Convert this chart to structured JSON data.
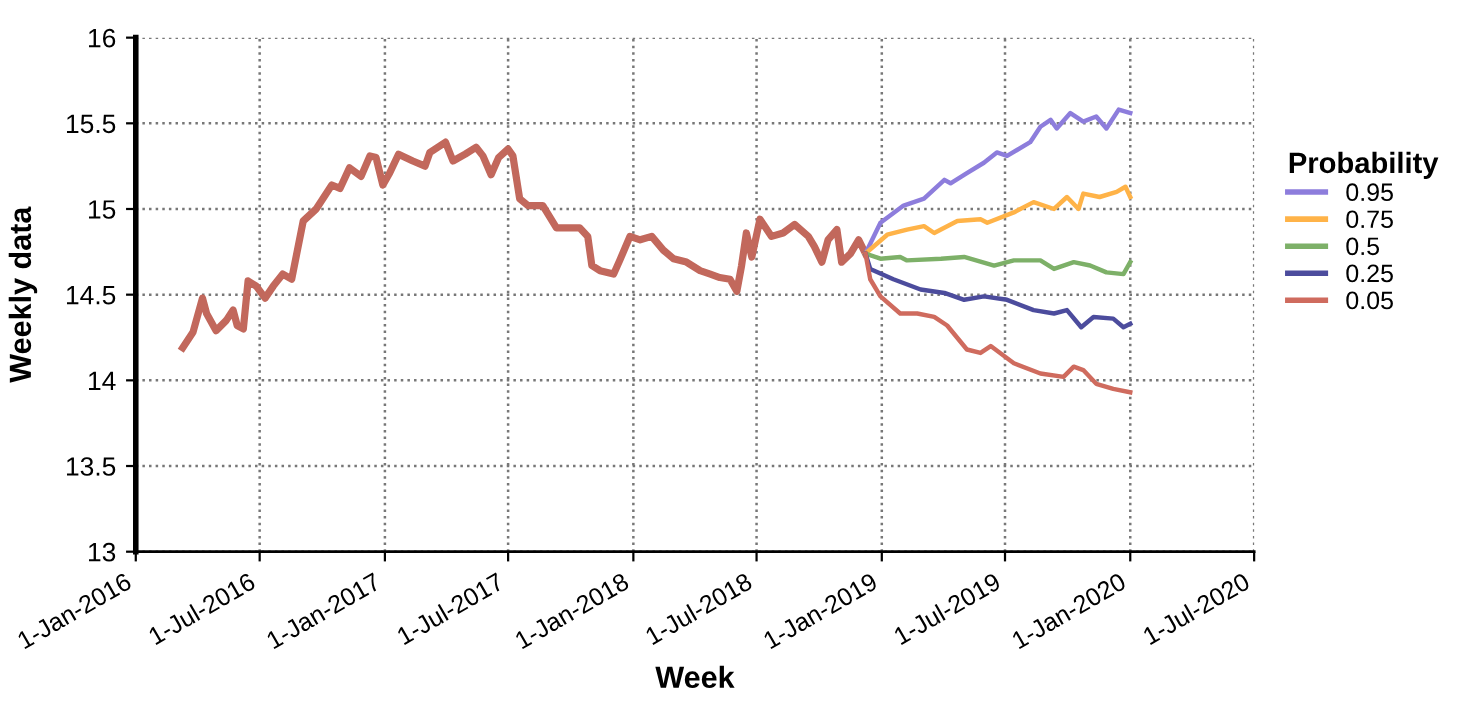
{
  "chart_data": {
    "type": "line",
    "xlabel": "Week",
    "ylabel": "Weekly data",
    "legend_title": "Probability",
    "legend": "right",
    "grid": true,
    "line_style": "solid",
    "marker": "none",
    "xlim": [
      "2016-01-01",
      "2020-07-01"
    ],
    "xticks": [
      {
        "value": "2016-01-01",
        "label": "1-Jan-2016"
      },
      {
        "value": "2016-07-01",
        "label": "1-Jul-2016"
      },
      {
        "value": "2017-01-01",
        "label": "1-Jan-2017"
      },
      {
        "value": "2017-07-01",
        "label": "1-Jul-2017"
      },
      {
        "value": "2018-01-01",
        "label": "1-Jan-2018"
      },
      {
        "value": "2018-07-01",
        "label": "1-Jul-2018"
      },
      {
        "value": "2019-01-01",
        "label": "1-Jan-2019"
      },
      {
        "value": "2019-07-01",
        "label": "1-Jul-2019"
      },
      {
        "value": "2020-01-01",
        "label": "1-Jan-2020"
      },
      {
        "value": "2020-07-01",
        "label": "1-Jul-2020"
      }
    ],
    "ylim": [
      13,
      16
    ],
    "yticks": [
      13,
      13.5,
      14,
      14.5,
      15,
      15.5,
      16
    ],
    "series": [
      {
        "color": "#c2685c",
        "x": [
          "2016-03-10",
          "2016-03-25",
          "2016-04-08",
          "2016-04-14",
          "2016-04-28",
          "2016-05-13",
          "2016-05-23",
          "2016-05-29",
          "2016-06-07",
          "2016-06-14",
          "2016-06-26",
          "2016-07-09",
          "2016-07-21",
          "2016-08-04",
          "2016-08-17",
          "2016-09-03",
          "2016-09-22",
          "2016-10-15",
          "2016-10-27",
          "2016-11-10",
          "2016-11-27",
          "2016-12-10",
          "2016-12-19",
          "2016-12-29",
          "2017-01-08",
          "2017-01-21",
          "2017-02-11",
          "2017-03-01",
          "2017-03-08",
          "2017-03-31",
          "2017-04-11",
          "2017-04-29",
          "2017-05-15",
          "2017-05-25",
          "2017-06-06",
          "2017-06-17",
          "2017-07-01",
          "2017-07-08",
          "2017-07-18",
          "2017-07-30",
          "2017-08-21",
          "2017-09-10",
          "2017-10-14",
          "2017-10-26",
          "2017-11-01",
          "2017-11-13",
          "2017-12-03",
          "2017-12-12",
          "2017-12-27",
          "2018-01-11",
          "2018-01-28",
          "2018-02-14",
          "2018-03-01",
          "2018-03-20",
          "2018-04-09",
          "2018-04-24",
          "2018-05-08",
          "2018-05-23",
          "2018-06-02",
          "2018-06-09",
          "2018-06-16",
          "2018-06-24",
          "2018-07-06",
          "2018-07-23",
          "2018-08-09",
          "2018-08-26",
          "2018-09-15",
          "2018-09-24",
          "2018-10-05",
          "2018-10-14",
          "2018-10-27",
          "2018-11-03",
          "2018-11-16",
          "2018-11-28",
          "2018-12-08"
        ],
        "values": [
          14.19,
          14.28,
          14.48,
          14.39,
          14.29,
          14.35,
          14.41,
          14.32,
          14.3,
          14.58,
          14.55,
          14.48,
          14.55,
          14.62,
          14.59,
          14.93,
          15.0,
          15.14,
          15.12,
          15.24,
          15.19,
          15.31,
          15.3,
          15.14,
          15.21,
          15.32,
          15.28,
          15.25,
          15.33,
          15.39,
          15.28,
          15.32,
          15.36,
          15.31,
          15.2,
          15.3,
          15.35,
          15.31,
          15.06,
          15.02,
          15.02,
          14.89,
          14.89,
          14.84,
          14.67,
          14.64,
          14.62,
          14.7,
          14.84,
          14.82,
          14.84,
          14.76,
          14.71,
          14.69,
          14.64,
          14.62,
          14.6,
          14.59,
          14.52,
          14.67,
          14.86,
          14.72,
          14.94,
          14.84,
          14.86,
          14.91,
          14.84,
          14.78,
          14.69,
          14.82,
          14.88,
          14.69,
          14.74,
          14.82,
          14.74
        ]
      },
      {
        "name": "0.95",
        "color": "#8d7ddc",
        "x": [
          "2018-12-08",
          "2018-12-30",
          "2019-02-02",
          "2019-03-04",
          "2019-04-03",
          "2019-04-12",
          "2019-05-06",
          "2019-05-31",
          "2019-06-19",
          "2019-07-04",
          "2019-08-07",
          "2019-08-22",
          "2019-09-06",
          "2019-09-15",
          "2019-10-05",
          "2019-10-24",
          "2019-11-12",
          "2019-11-27",
          "2019-12-15",
          "2020-01-01"
        ],
        "values": [
          14.74,
          14.92,
          15.02,
          15.06,
          15.17,
          15.15,
          15.21,
          15.27,
          15.33,
          15.31,
          15.39,
          15.48,
          15.52,
          15.47,
          15.56,
          15.51,
          15.54,
          15.47,
          15.58,
          15.56
        ]
      },
      {
        "name": "0.75",
        "color": "#ffb348",
        "x": [
          "2018-12-08",
          "2019-01-09",
          "2019-02-07",
          "2019-03-04",
          "2019-03-19",
          "2019-04-22",
          "2019-05-26",
          "2019-06-05",
          "2019-07-14",
          "2019-08-12",
          "2019-09-11",
          "2019-09-30",
          "2019-10-17",
          "2019-10-24",
          "2019-11-17",
          "2019-12-12",
          "2019-12-25",
          "2020-01-01"
        ],
        "values": [
          14.74,
          14.85,
          14.88,
          14.9,
          14.86,
          14.93,
          14.94,
          14.92,
          14.98,
          15.04,
          15.0,
          15.07,
          15.0,
          15.09,
          15.07,
          15.1,
          15.13,
          15.07
        ]
      },
      {
        "name": "0.5",
        "color": "#7db068",
        "x": [
          "2018-12-08",
          "2018-12-30",
          "2019-01-28",
          "2019-02-07",
          "2019-03-29",
          "2019-05-02",
          "2019-06-15",
          "2019-07-14",
          "2019-08-22",
          "2019-09-11",
          "2019-10-10",
          "2019-11-03",
          "2019-11-27",
          "2019-12-22",
          "2020-01-01"
        ],
        "values": [
          14.74,
          14.71,
          14.72,
          14.7,
          14.71,
          14.72,
          14.67,
          14.7,
          14.7,
          14.65,
          14.69,
          14.67,
          14.63,
          14.62,
          14.69
        ]
      },
      {
        "name": "0.25",
        "color": "#4c4c9d",
        "x": [
          "2018-12-08",
          "2018-12-15",
          "2019-01-18",
          "2019-02-27",
          "2019-04-03",
          "2019-05-02",
          "2019-05-31",
          "2019-07-04",
          "2019-08-12",
          "2019-09-11",
          "2019-09-30",
          "2019-10-21",
          "2019-11-08",
          "2019-12-07",
          "2019-12-22",
          "2020-01-01"
        ],
        "values": [
          14.74,
          14.65,
          14.59,
          14.53,
          14.51,
          14.47,
          14.49,
          14.47,
          14.41,
          14.39,
          14.41,
          14.31,
          14.37,
          14.36,
          14.31,
          14.33
        ]
      },
      {
        "name": "0.05",
        "color": "#cf6b5e",
        "x": [
          "2018-12-08",
          "2018-12-15",
          "2018-12-30",
          "2019-01-28",
          "2019-02-22",
          "2019-03-19",
          "2019-04-07",
          "2019-05-06",
          "2019-05-26",
          "2019-06-10",
          "2019-07-14",
          "2019-08-22",
          "2019-09-25",
          "2019-10-10",
          "2019-10-24",
          "2019-11-12",
          "2019-12-07",
          "2020-01-01"
        ],
        "values": [
          14.74,
          14.59,
          14.49,
          14.39,
          14.39,
          14.37,
          14.32,
          14.18,
          14.16,
          14.2,
          14.1,
          14.04,
          14.02,
          14.08,
          14.06,
          13.98,
          13.95,
          13.93
        ]
      }
    ]
  }
}
